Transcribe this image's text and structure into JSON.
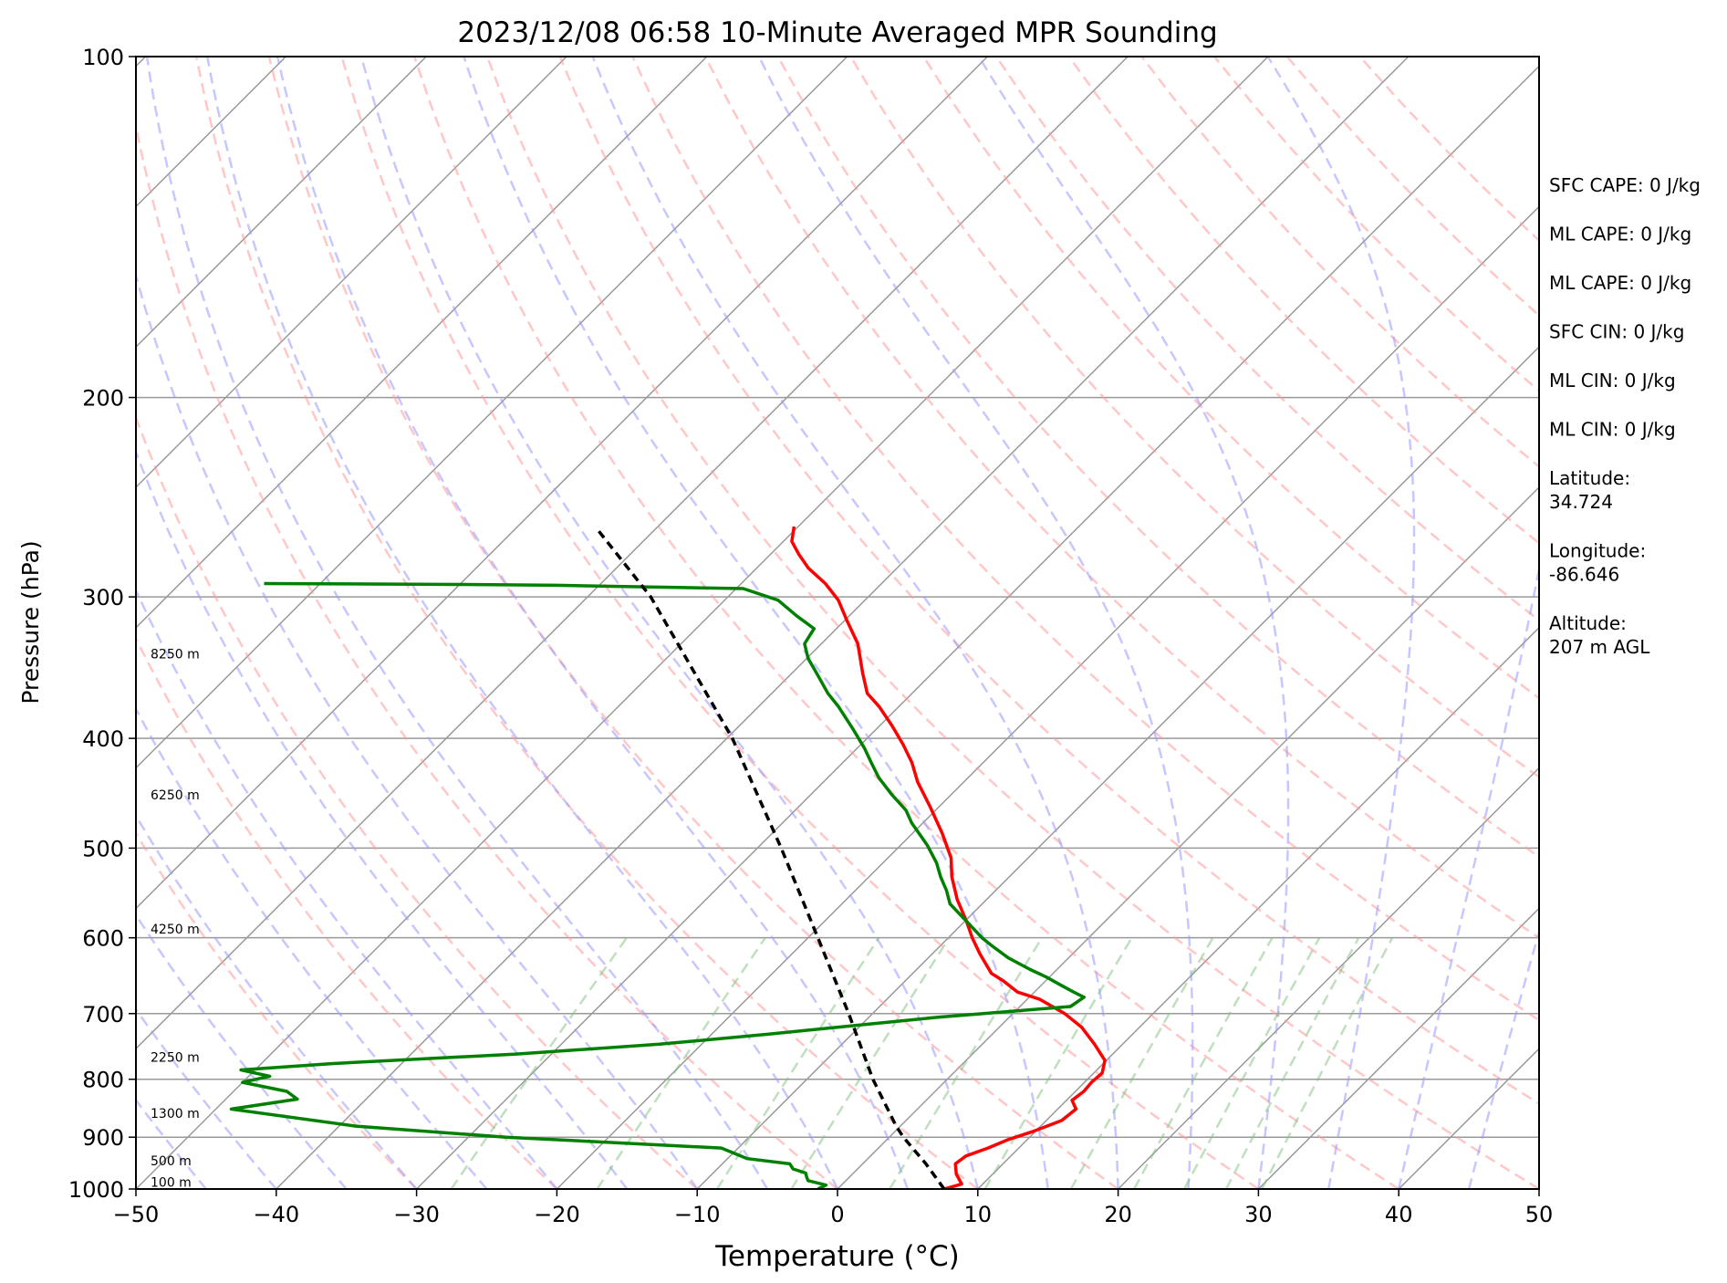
{
  "chart_data": {
    "type": "line",
    "title": "2023/12/08 06:58 10-Minute Averaged MPR Sounding",
    "xlabel": "Temperature (°C)",
    "ylabel": "Pressure (hPa)",
    "xlim": [
      -50,
      50
    ],
    "ylim": [
      1000,
      100
    ],
    "y_scale": "log",
    "skew": "skew-T log-P",
    "xticks": [
      "−50",
      "−40",
      "−30",
      "−20",
      "−10",
      "0",
      "10",
      "20",
      "30",
      "40",
      "50"
    ],
    "yticks": [
      "100",
      "200",
      "300",
      "400",
      "500",
      "600",
      "700",
      "800",
      "900",
      "1000"
    ],
    "grid": true,
    "colors": {
      "temperature": "#ff0000",
      "dewpoint": "#008000",
      "parcel": "#000000",
      "dry_adiabats": "#ff9999",
      "moist_adiabats": "#9999ff",
      "mixing_ratio": "#80c080",
      "isotherms": "#999999"
    },
    "height_labels": [
      {
        "label": "8250 m",
        "p": 340
      },
      {
        "label": "6250 m",
        "p": 453
      },
      {
        "label": "4250 m",
        "p": 595
      },
      {
        "label": "2250 m",
        "p": 772
      },
      {
        "label": "1300 m",
        "p": 865
      },
      {
        "label": "500 m",
        "p": 953
      },
      {
        "label": "100 m",
        "p": 995
      }
    ],
    "stats": [
      "SFC CAPE: 0 J/kg",
      "ML CAPE: 0 J/kg",
      "ML CAPE: 0 J/kg",
      "SFC CIN: 0 J/kg",
      "ML CIN: 0 J/kg",
      "ML CIN: 0 J/kg",
      "Latitude:\n34.724",
      "Longitude:\n-86.646",
      "Altitude:\n207 m AGL"
    ],
    "series": [
      {
        "id": "temperature",
        "color": "#ff0000",
        "points": [
          [
            7.6,
            1000
          ],
          [
            8.5,
            990
          ],
          [
            7.4,
            970
          ],
          [
            6.6,
            950
          ],
          [
            6.8,
            935
          ],
          [
            7.8,
            920
          ],
          [
            8.6,
            905
          ],
          [
            9.8,
            890
          ],
          [
            11.1,
            870
          ],
          [
            11.3,
            850
          ],
          [
            10.4,
            835
          ],
          [
            10.6,
            820
          ],
          [
            10.5,
            805
          ],
          [
            10.6,
            790
          ],
          [
            9.9,
            770
          ],
          [
            8.0,
            745
          ],
          [
            5.9,
            720
          ],
          [
            3.7,
            700
          ],
          [
            0.9,
            680
          ],
          [
            -1.2,
            670
          ],
          [
            -3.0,
            655
          ],
          [
            -4.4,
            645
          ],
          [
            -6.6,
            620
          ],
          [
            -8.3,
            600
          ],
          [
            -9.9,
            580
          ],
          [
            -12.1,
            555
          ],
          [
            -14.1,
            530
          ],
          [
            -15.5,
            510
          ],
          [
            -17.9,
            485
          ],
          [
            -20.6,
            460
          ],
          [
            -23.3,
            437
          ],
          [
            -25.1,
            420
          ],
          [
            -27.0,
            405
          ],
          [
            -29.1,
            390
          ],
          [
            -31.4,
            375
          ],
          [
            -33.2,
            365
          ],
          [
            -35.0,
            350
          ],
          [
            -37.4,
            330
          ],
          [
            -39.8,
            315
          ],
          [
            -41.9,
            302
          ],
          [
            -44.0,
            292
          ],
          [
            -46.3,
            283
          ],
          [
            -48.0,
            275
          ],
          [
            -49.4,
            268
          ],
          [
            -50.3,
            260
          ]
        ]
      },
      {
        "id": "dewpoint",
        "color": "#008000",
        "points": [
          [
            -1.4,
            1000
          ],
          [
            -1.1,
            992
          ],
          [
            -2.7,
            983
          ],
          [
            -3.1,
            975
          ],
          [
            -3.4,
            968
          ],
          [
            -4.6,
            960
          ],
          [
            -5.2,
            950
          ],
          [
            -8.6,
            940
          ],
          [
            -11.2,
            920
          ],
          [
            -27.3,
            900
          ],
          [
            -38.8,
            880
          ],
          [
            -48.9,
            850
          ],
          [
            -44.9,
            833
          ],
          [
            -46.2,
            820
          ],
          [
            -50.0,
            805
          ],
          [
            -48.5,
            795
          ],
          [
            -51.0,
            785
          ],
          [
            -45.0,
            775
          ],
          [
            -32.5,
            760
          ],
          [
            -23.0,
            745
          ],
          [
            -16.0,
            730
          ],
          [
            -9.5,
            715
          ],
          [
            -5.0,
            705
          ],
          [
            -1.0,
            698
          ],
          [
            3.6,
            690
          ],
          [
            3.9,
            677
          ],
          [
            2.8,
            670
          ],
          [
            1.3,
            660
          ],
          [
            -0.2,
            650
          ],
          [
            -1.9,
            640
          ],
          [
            -4.3,
            625
          ],
          [
            -6.3,
            610
          ],
          [
            -7.6,
            600
          ],
          [
            -9.9,
            580
          ],
          [
            -12.3,
            560
          ],
          [
            -13.5,
            545
          ],
          [
            -14.9,
            530
          ],
          [
            -16.2,
            515
          ],
          [
            -18.1,
            497
          ],
          [
            -20.8,
            475
          ],
          [
            -22.1,
            463
          ],
          [
            -24.3,
            448
          ],
          [
            -26.4,
            433
          ],
          [
            -28.0,
            420
          ],
          [
            -29.5,
            408
          ],
          [
            -31.6,
            393
          ],
          [
            -34.3,
            375
          ],
          [
            -36.0,
            365
          ],
          [
            -38.3,
            350
          ],
          [
            -39.9,
            340
          ],
          [
            -41.2,
            330
          ],
          [
            -41.6,
            320
          ],
          [
            -43.7,
            312
          ],
          [
            -46.2,
            302
          ],
          [
            -49.5,
            295
          ],
          [
            -63.0,
            293
          ],
          [
            -70.0,
            292.5
          ],
          [
            -84.0,
            292
          ]
        ]
      },
      {
        "id": "parcel",
        "color": "#000000",
        "dashed": true,
        "points": [
          [
            7.6,
            1000
          ],
          [
            4.5,
            950
          ],
          [
            1.0,
            900
          ],
          [
            -0.3,
            880
          ],
          [
            -5.3,
            800
          ],
          [
            -11.7,
            700
          ],
          [
            -19.3,
            600
          ],
          [
            -28.3,
            500
          ],
          [
            -39.6,
            400
          ],
          [
            -55.5,
            300
          ],
          [
            -64.0,
            262
          ]
        ]
      }
    ]
  }
}
